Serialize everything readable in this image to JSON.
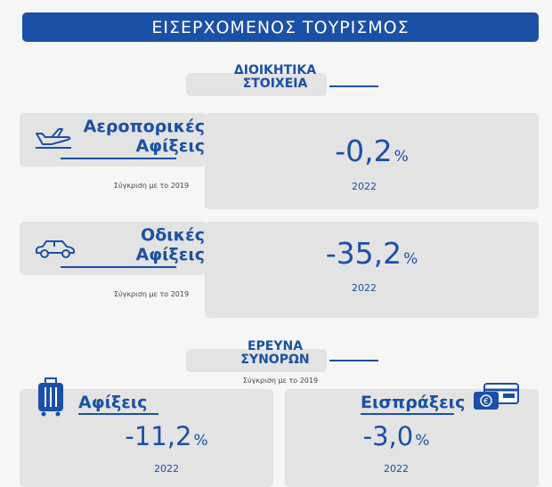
{
  "banner": {
    "title": "ΕΙΣΕΡΧΟΜΕΝΟΣ ΤΟΥΡΙΣΜΟΣ"
  },
  "admin_section": {
    "line1": "ΔΙΟΙΚΗΤΙΚΑ",
    "line2": "ΣΤΟΙΧΕΙΑ"
  },
  "air_card": {
    "title_line1": "Αεροπορικές",
    "title_line2": "Αφίξεις",
    "compare": "Σύγκριση με το 2019",
    "value": "-0,2",
    "unit": "%",
    "year": "2022",
    "icon": "airplane-icon"
  },
  "road_card": {
    "title_line1": "Οδικές",
    "title_line2": "Αφίξεις",
    "compare": "Σύγκριση με το 2019",
    "value": "-35,2",
    "unit": "%",
    "year": "2022",
    "icon": "car-icon"
  },
  "border_section": {
    "line1": "ΕΡΕΥΝΑ",
    "line2": "ΣΥΝΟΡΩΝ",
    "compare": "Σύγκριση με το 2019"
  },
  "arrivals_card": {
    "title": "Αφίξεις",
    "value": "-11,2",
    "unit": "%",
    "year": "2022",
    "icon": "luggage-icon"
  },
  "receipts_card": {
    "title": "Εισπράξεις",
    "value": "-3,0",
    "unit": "%",
    "year": "2022",
    "icon": "credit-card-icon"
  },
  "colors": {
    "brand_blue": "#1a50a6",
    "card_gray": "#e3e3e3",
    "background": "#f6f6f6"
  }
}
